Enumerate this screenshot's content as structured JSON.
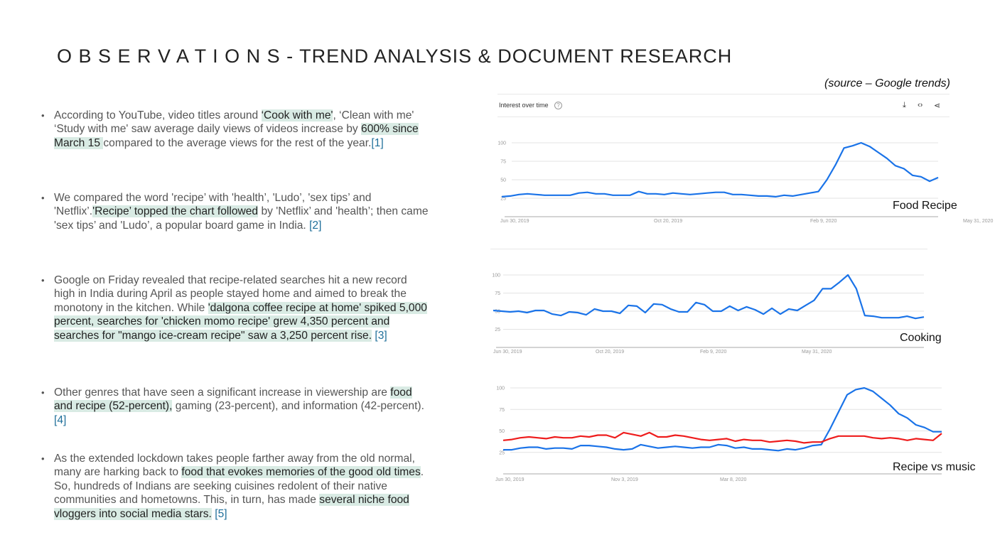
{
  "title": "O B S E R V A T I O N S - TREND ANALYSIS & DOCUMENT RESEARCH",
  "source": "(source – Google trends)",
  "bullets": [
    {
      "segments": [
        {
          "t": "According to YouTube, video titles around "
        },
        {
          "t": "‘Cook with me'",
          "h": true
        },
        {
          "t": ", ‘Clean with me' ‘Study with me' saw average daily views of videos increase by "
        },
        {
          "t": "600% since March 15 ",
          "h": true
        },
        {
          "t": "compared to the average views for the rest of the year."
        },
        {
          "t": "[1]",
          "ref": true
        }
      ]
    },
    {
      "segments": [
        {
          "t": "We compared the word 'recipe’ with 'health’, 'Ludo’, 'sex tips’ and 'Netflix’."
        },
        {
          "t": "'Recipe’ topped the chart followed",
          "h": true
        },
        {
          "t": " by 'Netflix’ and 'health’; then came 'sex tips’ and 'Ludo’, a popular board game in India. "
        },
        {
          "t": "[2]",
          "ref": true
        }
      ]
    },
    {
      "segments": [
        {
          "t": "Google on Friday revealed that recipe-related searches hit a new record high in India during April as people stayed home and aimed to break the monotony in the kitchen. While "
        },
        {
          "t": "'dalgona coffee recipe at home' spiked 5,000 percent, searches for 'chicken momo recipe' grew 4,350 percent and searches for \"mango ice-cream recipe\" saw a 3,250 percent rise.",
          "h": true
        },
        {
          "t": " "
        },
        {
          "t": "[3]",
          "ref": true
        }
      ]
    },
    {
      "segments": [
        {
          "t": "Other genres that have seen a significant increase in viewership are "
        },
        {
          "t": "food and recipe (52-percent),",
          "h": true
        },
        {
          "t": " gaming (23-percent), and information (42-percent). "
        },
        {
          "t": "[4]",
          "ref": true
        }
      ]
    },
    {
      "segments": [
        {
          "t": "As the extended lockdown takes people farther away from the old normal, many are harking back to "
        },
        {
          "t": "food that evokes memories of the good old times",
          "h": true
        },
        {
          "t": ". So, hundreds of Indians are seeking cuisines redolent of their native communities and hometowns. This, in turn, has made "
        },
        {
          "t": "several niche food vloggers into social media stars.",
          "h": true
        },
        {
          "t": " "
        },
        {
          "t": "[5]",
          "ref": true
        }
      ]
    }
  ],
  "chart_header": {
    "title": "Interest over time",
    "help": "?",
    "icons": [
      "download-icon",
      "embed-code-icon",
      "share-icon"
    ]
  },
  "chart_data": [
    {
      "type": "line",
      "annotation": "Food Recipe",
      "yticks": [
        25,
        50,
        75,
        100
      ],
      "ylim": [
        0,
        100
      ],
      "xticks": [
        "Jun 30, 2019",
        "Oct 20, 2019",
        "Feb 9, 2020",
        "May 31, 2020"
      ],
      "series": [
        {
          "name": "Food Recipe",
          "color": "#1a73e8",
          "values": [
            27,
            28,
            30,
            31,
            30,
            29,
            29,
            29,
            29,
            32,
            33,
            31,
            31,
            29,
            29,
            29,
            34,
            31,
            31,
            30,
            32,
            31,
            30,
            31,
            32,
            33,
            33,
            30,
            30,
            29,
            28,
            28,
            27,
            29,
            28,
            30,
            32,
            34,
            50,
            70,
            93,
            96,
            100,
            95,
            87,
            79,
            69,
            65,
            56,
            54,
            48,
            53
          ]
        }
      ]
    },
    {
      "type": "line",
      "annotation": "Cooking",
      "yticks": [
        25,
        50,
        75,
        100
      ],
      "ylim": [
        0,
        100
      ],
      "xticks": [
        "Jun 30, 2019",
        "Oct 20, 2019",
        "Feb 9, 2020",
        "May 31, 2020"
      ],
      "series": [
        {
          "name": "Cooking",
          "color": "#1a73e8",
          "values": [
            51,
            50,
            49,
            50,
            48,
            51,
            51,
            46,
            44,
            49,
            48,
            45,
            53,
            50,
            50,
            47,
            58,
            57,
            48,
            60,
            59,
            53,
            49,
            49,
            62,
            59,
            50,
            50,
            57,
            51,
            56,
            52,
            46,
            54,
            46,
            53,
            51,
            58,
            65,
            81,
            81,
            90,
            100,
            81,
            44,
            43,
            41,
            41,
            41,
            43,
            40,
            42
          ]
        }
      ]
    },
    {
      "type": "line",
      "annotation": "Recipe vs music",
      "yticks": [
        25,
        50,
        75,
        100
      ],
      "ylim": [
        0,
        100
      ],
      "xticks": [
        "Jun 30, 2019",
        "Nov 3, 2019",
        "Mar 8, 2020"
      ],
      "series": [
        {
          "name": "Recipe",
          "color": "#1a73e8",
          "values": [
            28,
            28,
            30,
            31,
            31,
            29,
            30,
            30,
            29,
            33,
            33,
            32,
            31,
            29,
            28,
            29,
            34,
            32,
            30,
            31,
            32,
            31,
            30,
            31,
            31,
            34,
            33,
            30,
            31,
            29,
            29,
            28,
            27,
            29,
            28,
            30,
            33,
            34,
            52,
            72,
            92,
            98,
            100,
            96,
            88,
            80,
            70,
            65,
            57,
            54,
            49,
            49
          ]
        },
        {
          "name": "Music",
          "color": "#ee1c1c",
          "values": [
            39,
            40,
            42,
            43,
            42,
            41,
            43,
            42,
            42,
            44,
            43,
            45,
            45,
            42,
            48,
            46,
            44,
            48,
            43,
            43,
            45,
            44,
            42,
            40,
            39,
            40,
            41,
            38,
            40,
            39,
            39,
            37,
            38,
            39,
            38,
            36,
            37,
            37,
            41,
            44,
            44,
            44,
            44,
            42,
            41,
            42,
            41,
            39,
            41,
            40,
            39,
            47
          ]
        }
      ]
    }
  ]
}
